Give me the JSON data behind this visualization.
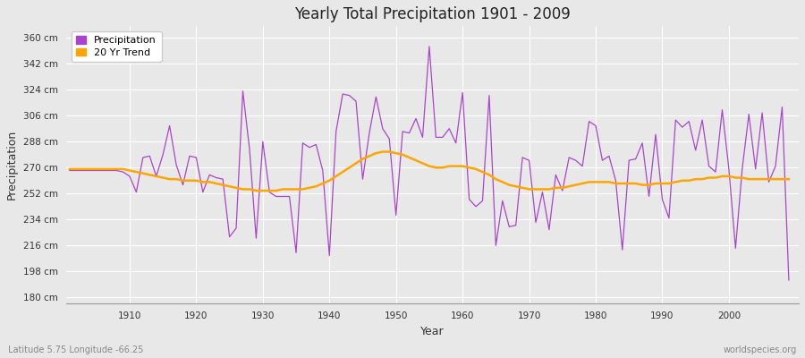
{
  "title": "Yearly Total Precipitation 1901 - 2009",
  "xlabel": "Year",
  "ylabel": "Precipitation",
  "footnote_left": "Latitude 5.75 Longitude -66.25",
  "footnote_right": "worldspecies.org",
  "years": [
    1901,
    1902,
    1903,
    1904,
    1905,
    1906,
    1907,
    1908,
    1909,
    1910,
    1911,
    1912,
    1913,
    1914,
    1915,
    1916,
    1917,
    1918,
    1919,
    1920,
    1921,
    1922,
    1923,
    1924,
    1925,
    1926,
    1927,
    1928,
    1929,
    1930,
    1931,
    1932,
    1933,
    1934,
    1935,
    1936,
    1937,
    1938,
    1939,
    1940,
    1941,
    1942,
    1943,
    1944,
    1945,
    1946,
    1947,
    1948,
    1949,
    1950,
    1951,
    1952,
    1953,
    1954,
    1955,
    1956,
    1957,
    1958,
    1959,
    1960,
    1961,
    1962,
    1963,
    1964,
    1965,
    1966,
    1967,
    1968,
    1969,
    1970,
    1971,
    1972,
    1973,
    1974,
    1975,
    1976,
    1977,
    1978,
    1979,
    1980,
    1981,
    1982,
    1983,
    1984,
    1985,
    1986,
    1987,
    1988,
    1989,
    1990,
    1991,
    1992,
    1993,
    1994,
    1995,
    1996,
    1997,
    1998,
    1999,
    2000,
    2001,
    2002,
    2003,
    2004,
    2005,
    2006,
    2007,
    2008,
    2009
  ],
  "precipitation": [
    268,
    268,
    268,
    268,
    268,
    268,
    268,
    268,
    267,
    264,
    253,
    277,
    278,
    264,
    279,
    299,
    272,
    258,
    278,
    277,
    253,
    265,
    263,
    262,
    222,
    228,
    323,
    283,
    221,
    288,
    253,
    250,
    250,
    250,
    211,
    287,
    284,
    286,
    268,
    209,
    295,
    321,
    320,
    316,
    262,
    294,
    319,
    297,
    290,
    237,
    295,
    294,
    304,
    291,
    354,
    291,
    291,
    297,
    287,
    322,
    248,
    243,
    247,
    320,
    216,
    247,
    229,
    230,
    277,
    275,
    232,
    253,
    227,
    265,
    254,
    277,
    275,
    271,
    302,
    299,
    275,
    278,
    261,
    213,
    275,
    276,
    287,
    250,
    293,
    248,
    235,
    303,
    298,
    302,
    282,
    303,
    271,
    267,
    310,
    269,
    214,
    269,
    307,
    269,
    308,
    260,
    271,
    312,
    192
  ],
  "trend": [
    269,
    269,
    269,
    269,
    269,
    269,
    269,
    269,
    269,
    268,
    267,
    266,
    265,
    264,
    263,
    262,
    262,
    261,
    261,
    261,
    260,
    260,
    259,
    258,
    257,
    256,
    255,
    255,
    254,
    254,
    254,
    254,
    255,
    255,
    255,
    255,
    256,
    257,
    259,
    261,
    264,
    267,
    270,
    273,
    276,
    278,
    280,
    281,
    281,
    280,
    279,
    277,
    275,
    273,
    271,
    270,
    270,
    271,
    271,
    271,
    270,
    269,
    267,
    265,
    262,
    260,
    258,
    257,
    256,
    255,
    255,
    255,
    255,
    256,
    256,
    257,
    258,
    259,
    260,
    260,
    260,
    260,
    259,
    259,
    259,
    259,
    258,
    258,
    259,
    259,
    259,
    260,
    261,
    261,
    262,
    262,
    263,
    263,
    264,
    264,
    263,
    263,
    262,
    262,
    262,
    262,
    262,
    262,
    262
  ],
  "precip_color": "#AA44CC",
  "trend_color": "#FFA500",
  "background_color": "#E8E8E8",
  "plot_bg_color": "#E8E8E8",
  "grid_color": "#FFFFFF",
  "ytick_labels": [
    "180 cm",
    "198 cm",
    "216 cm",
    "234 cm",
    "252 cm",
    "270 cm",
    "288 cm",
    "306 cm",
    "324 cm",
    "342 cm",
    "360 cm"
  ],
  "ytick_values": [
    180,
    198,
    216,
    234,
    252,
    270,
    288,
    306,
    324,
    342,
    360
  ],
  "ylim": [
    176,
    368
  ],
  "xlim": [
    1900.5,
    2010.5
  ],
  "xticks": [
    1910,
    1920,
    1930,
    1940,
    1950,
    1960,
    1970,
    1980,
    1990,
    2000
  ]
}
